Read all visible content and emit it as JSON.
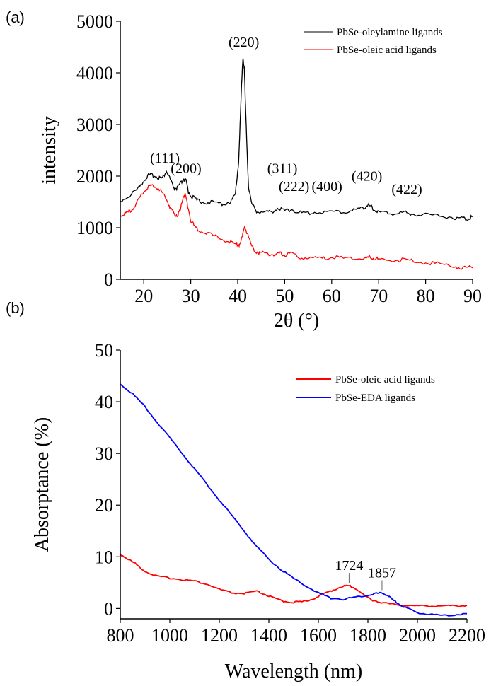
{
  "panels": [
    {
      "tag": "(a)"
    },
    {
      "tag": "(b)"
    }
  ],
  "chart_data": [
    {
      "type": "line",
      "title": "",
      "xlabel": "2θ (°)",
      "ylabel": "intensity",
      "xlim": [
        15,
        90
      ],
      "ylim": [
        0,
        5000
      ],
      "xticks": [
        20,
        30,
        40,
        50,
        60,
        70,
        80,
        90
      ],
      "yticks": [
        0,
        1000,
        2000,
        3000,
        4000,
        5000
      ],
      "grid": false,
      "legend_position": "top-right",
      "series": [
        {
          "name": "PbSe-oleylamine ligands",
          "color": "#000000",
          "x": [
            15,
            17,
            19,
            20,
            21,
            22,
            23,
            24,
            24.8,
            25.5,
            26.3,
            27,
            27.7,
            28.5,
            29,
            29.5,
            30.3,
            31.5,
            33,
            35,
            37,
            38.5,
            39.5,
            40.2,
            40.8,
            41.1,
            41.4,
            41.7,
            42.3,
            43,
            44,
            45.5,
            47,
            48.5,
            50,
            51.5,
            53,
            55,
            57,
            60,
            63,
            65,
            66.5,
            67.5,
            68.2,
            69,
            70,
            72,
            74,
            75.5,
            77,
            80,
            83,
            86,
            88,
            89,
            90
          ],
          "y": [
            1520,
            1620,
            1780,
            1920,
            2010,
            2020,
            1980,
            1960,
            2100,
            1970,
            1780,
            1760,
            1830,
            1950,
            1900,
            1700,
            1600,
            1520,
            1500,
            1480,
            1470,
            1500,
            1650,
            2300,
            3700,
            4300,
            4100,
            3200,
            1800,
            1450,
            1330,
            1300,
            1300,
            1380,
            1330,
            1360,
            1290,
            1280,
            1310,
            1300,
            1310,
            1350,
            1380,
            1430,
            1420,
            1350,
            1300,
            1280,
            1280,
            1300,
            1270,
            1250,
            1240,
            1200,
            1180,
            1180,
            1220
          ]
        },
        {
          "name": "PbSe-oleic acid ligands",
          "color": "#ff0000",
          "x": [
            15,
            16,
            17,
            18,
            19,
            20,
            21,
            22,
            23,
            24,
            25,
            25.8,
            26.5,
            27.2,
            27.8,
            28.4,
            28.8,
            29.3,
            30,
            31,
            32,
            34,
            36,
            38,
            39.5,
            40.3,
            41,
            41.5,
            42,
            43,
            44,
            45,
            47,
            48,
            49,
            50,
            51,
            53,
            55,
            58,
            60,
            62,
            65,
            67,
            68,
            69,
            70,
            72,
            75,
            77,
            80,
            83,
            86,
            88,
            90
          ],
          "y": [
            1250,
            1270,
            1310,
            1420,
            1550,
            1700,
            1790,
            1810,
            1770,
            1660,
            1520,
            1350,
            1260,
            1250,
            1340,
            1600,
            1640,
            1450,
            1150,
            1000,
            950,
            880,
            800,
            730,
            680,
            680,
            820,
            1040,
            900,
            620,
            540,
            510,
            490,
            470,
            500,
            470,
            500,
            440,
            410,
            400,
            430,
            410,
            400,
            400,
            430,
            410,
            380,
            370,
            370,
            360,
            330,
            300,
            260,
            230,
            220
          ]
        }
      ],
      "annotations": [
        {
          "text": "(111)",
          "x": 24.5,
          "y": 2150
        },
        {
          "text": "(200)",
          "x": 29,
          "y": 1950
        },
        {
          "text": "(220)",
          "x": 41.3,
          "y": 4400
        },
        {
          "text": "(311)",
          "x": 49.5,
          "y": 1950
        },
        {
          "text": "(222)",
          "x": 52,
          "y": 1600
        },
        {
          "text": "(400)",
          "x": 59,
          "y": 1600
        },
        {
          "text": "(420)",
          "x": 67.5,
          "y": 1800
        },
        {
          "text": "(422)",
          "x": 76,
          "y": 1550
        }
      ]
    },
    {
      "type": "line",
      "title": "",
      "xlabel": "Wavelength (nm)",
      "ylabel": "Absorptance (%)",
      "xlim": [
        800,
        2200
      ],
      "ylim": [
        -2,
        50
      ],
      "xticks": [
        800,
        1000,
        1200,
        1400,
        1600,
        1800,
        2000,
        2200
      ],
      "yticks": [
        0,
        10,
        20,
        30,
        40,
        50
      ],
      "grid": false,
      "legend_position": "top-right",
      "series": [
        {
          "name": "PbSe-oleic acid ligands",
          "color": "#ff0000",
          "x": [
            800,
            830,
            860,
            900,
            950,
            1000,
            1050,
            1100,
            1150,
            1200,
            1250,
            1300,
            1350,
            1380,
            1420,
            1460,
            1500,
            1540,
            1580,
            1620,
            1660,
            1700,
            1724,
            1750,
            1780,
            1820,
            1860,
            1900,
            1950,
            2000,
            2050,
            2100,
            2150,
            2200
          ],
          "y": [
            10.5,
            9.6,
            8.7,
            7.2,
            6.2,
            5.9,
            5.6,
            5.3,
            4.7,
            3.7,
            3.0,
            2.9,
            3.3,
            2.8,
            2.0,
            1.4,
            1.2,
            1.3,
            1.9,
            2.8,
            3.6,
            4.3,
            4.4,
            3.9,
            2.7,
            1.6,
            1.1,
            0.8,
            0.6,
            0.5,
            0.5,
            0.5,
            0.5,
            0.6
          ]
        },
        {
          "name": "PbSe-EDA ligands",
          "color": "#0000ff",
          "x": [
            800,
            850,
            900,
            950,
            1000,
            1050,
            1100,
            1150,
            1200,
            1250,
            1300,
            1350,
            1400,
            1450,
            1500,
            1550,
            1600,
            1650,
            1700,
            1750,
            1800,
            1830,
            1857,
            1880,
            1900,
            1930,
            1960,
            2000,
            2050,
            2100,
            2150,
            2200
          ],
          "y": [
            43.5,
            41.5,
            39,
            36,
            33,
            30,
            27,
            24,
            21,
            18,
            15,
            12,
            9.5,
            7.5,
            5.8,
            4.3,
            3.0,
            2.0,
            1.8,
            2.2,
            2.6,
            2.9,
            3.0,
            2.5,
            1.7,
            0.7,
            0,
            -0.8,
            -1.1,
            -1.4,
            -1.2,
            -1.0
          ]
        }
      ],
      "annotations": [
        {
          "text": "1724",
          "x": 1724,
          "y": 4.4
        },
        {
          "text": "1857",
          "x": 1857,
          "y": 3.0
        }
      ]
    }
  ]
}
